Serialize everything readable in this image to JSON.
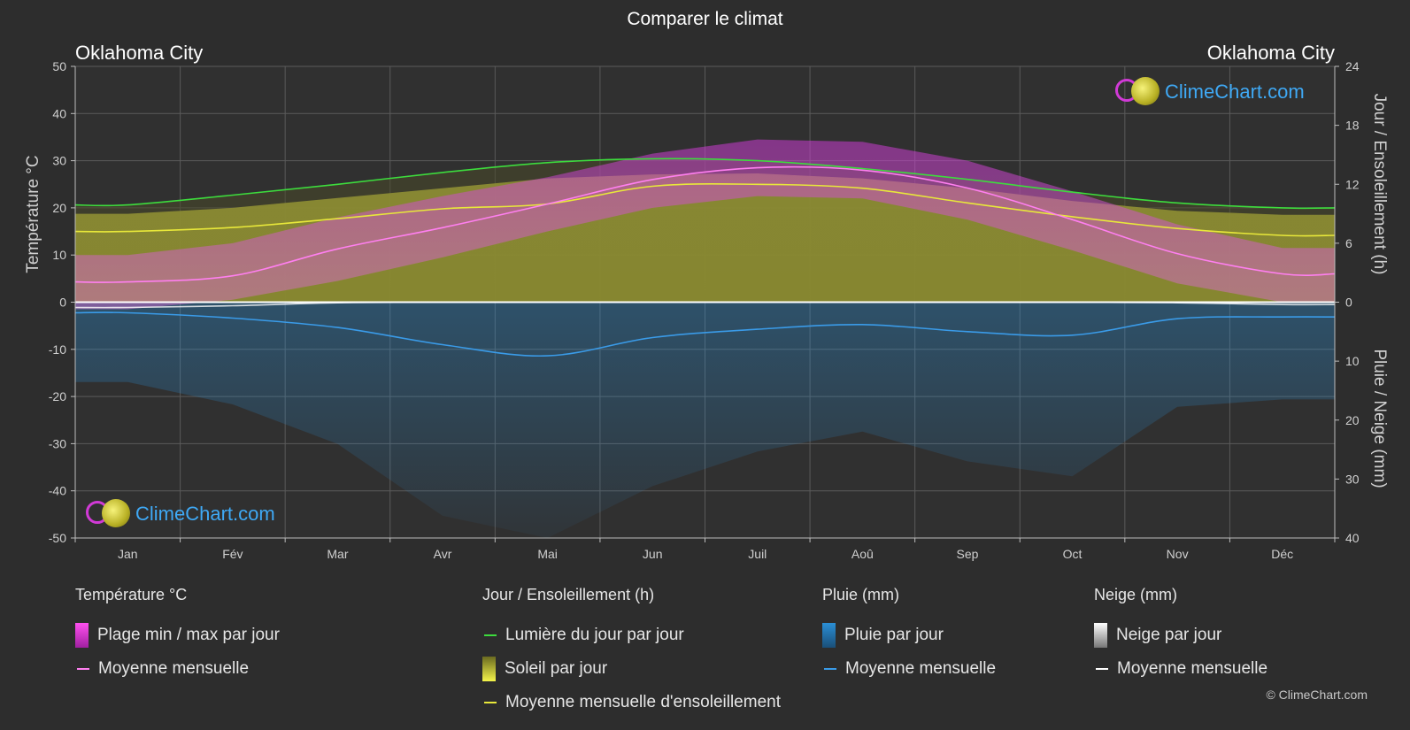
{
  "header": {
    "title": "Comparer le climat",
    "location_left": "Oklahoma City",
    "location_right": "Oklahoma City"
  },
  "axes": {
    "left_title": "Température °C",
    "right_top_title": "Jour / Ensoleillement (h)",
    "right_bottom_title": "Pluie / Neige (mm)"
  },
  "logo": {
    "text": "ClimeChart.com"
  },
  "copyright": "© ClimeChart.com",
  "legend": {
    "temperature": {
      "title": "Température °C",
      "range_label": "Plage min / max par jour",
      "mean_label": "Moyenne mensuelle"
    },
    "sun": {
      "title": "Jour / Ensoleillement (h)",
      "daylight_label": "Lumière du jour par jour",
      "sunshine_label": "Soleil par jour",
      "sunshine_mean_label": "Moyenne mensuelle d'ensoleillement"
    },
    "rain": {
      "title": "Pluie (mm)",
      "daily_label": "Pluie par jour",
      "mean_label": "Moyenne mensuelle"
    },
    "snow": {
      "title": "Neige (mm)",
      "daily_label": "Neige par jour",
      "mean_label": "Moyenne mensuelle"
    }
  },
  "colors": {
    "background": "#2d2d2d",
    "temp_mean": "#ff7ff0",
    "temp_range": "#d932d6",
    "daylight": "#3ddc3d",
    "sunshine_mean": "#e8e83a",
    "sunshine_fill": "#9a9a34",
    "rain": "#2b8fd6",
    "rain_mean": "#3a9be8",
    "snow": "#ffffff"
  },
  "chart_data": {
    "type": "line",
    "months": [
      "Jan",
      "Fév",
      "Mar",
      "Avr",
      "Mai",
      "Jun",
      "Juil",
      "Aoû",
      "Sep",
      "Oct",
      "Nov",
      "Déc"
    ],
    "y_left": {
      "label": "Température °C",
      "range": [
        -50,
        50
      ],
      "ticks": [
        50,
        40,
        30,
        20,
        10,
        0,
        -10,
        -20,
        -30,
        -40,
        -50
      ]
    },
    "y_right_top": {
      "label": "Jour / Ensoleillement (h)",
      "range": [
        0,
        24
      ],
      "ticks": [
        24,
        18,
        12,
        6,
        0
      ]
    },
    "y_right_bottom": {
      "label": "Pluie / Neige (mm)",
      "range": [
        0,
        40
      ],
      "ticks": [
        0,
        10,
        20,
        30,
        40
      ]
    },
    "grid": true,
    "series": [
      {
        "name": "Lumière du jour par jour",
        "unit": "h",
        "values": [
          9.9,
          10.9,
          12.0,
          13.2,
          14.2,
          14.6,
          14.4,
          13.6,
          12.5,
          11.2,
          10.1,
          9.6
        ]
      },
      {
        "name": "Moyenne mensuelle d'ensoleillement",
        "unit": "h",
        "values": [
          7.2,
          7.6,
          8.5,
          9.5,
          10.0,
          11.8,
          12.0,
          11.6,
          10.1,
          8.7,
          7.5,
          6.8
        ]
      },
      {
        "name": "Soleil par jour",
        "unit": "h",
        "values": [
          9.0,
          9.6,
          10.6,
          11.6,
          12.6,
          13.0,
          13.1,
          12.6,
          11.6,
          10.3,
          9.3,
          8.9
        ]
      },
      {
        "name": "Moyenne mensuelle",
        "metric": "temperature",
        "unit": "°C",
        "values": [
          4.3,
          5.6,
          11.3,
          15.8,
          20.8,
          26.0,
          28.5,
          28.0,
          24.2,
          17.5,
          10.3,
          6.0
        ]
      },
      {
        "name": "Plage min / max par jour",
        "metric": "temperature",
        "unit": "°C",
        "min": [
          -1.5,
          0.5,
          4.5,
          9.5,
          15.0,
          20.0,
          22.5,
          22.0,
          17.5,
          11.0,
          4.0,
          0.0
        ],
        "max": [
          10.0,
          12.5,
          18.0,
          22.5,
          26.5,
          31.5,
          34.5,
          34.0,
          30.0,
          23.5,
          16.5,
          11.5
        ]
      },
      {
        "name": "Moyenne mensuelle",
        "metric": "pluie",
        "unit": "mm",
        "values": [
          1.8,
          2.7,
          4.3,
          7.2,
          9.1,
          6.0,
          4.6,
          3.8,
          5.0,
          5.6,
          2.8,
          2.5
        ]
      },
      {
        "name": "Moyenne mensuelle",
        "metric": "neige",
        "unit": "mm",
        "values": [
          0.9,
          0.6,
          0.1,
          0,
          0,
          0,
          0,
          0,
          0,
          0,
          0.1,
          0.4
        ]
      }
    ]
  }
}
